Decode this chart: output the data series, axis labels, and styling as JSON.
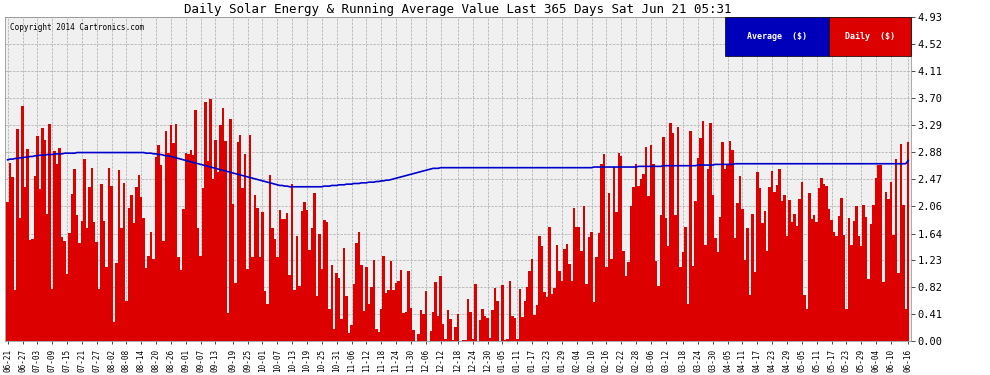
{
  "title": "Daily Solar Energy & Running Average Value Last 365 Days Sat Jun 21 05:31",
  "copyright": "Copyright 2014 Cartronics.com",
  "background_color": "#ffffff",
  "plot_bg_color": "#f0f0f0",
  "bar_color": "#dd0000",
  "line_color": "#0000cc",
  "ylim": [
    0.0,
    4.93
  ],
  "yticks": [
    0.0,
    0.41,
    0.82,
    1.23,
    1.64,
    2.06,
    2.47,
    2.88,
    3.29,
    3.7,
    4.11,
    4.52,
    4.93
  ],
  "legend_avg_bg": "#0000bb",
  "legend_daily_bg": "#dd0000",
  "x_labels": [
    "06-21",
    "06-27",
    "07-03",
    "07-09",
    "07-15",
    "07-21",
    "07-27",
    "08-02",
    "08-08",
    "08-14",
    "08-20",
    "08-26",
    "09-01",
    "09-07",
    "09-13",
    "09-19",
    "09-25",
    "10-01",
    "10-07",
    "10-13",
    "10-19",
    "10-25",
    "10-31",
    "11-06",
    "11-12",
    "11-18",
    "11-24",
    "11-30",
    "12-06",
    "12-12",
    "12-18",
    "12-24",
    "12-30",
    "01-05",
    "01-11",
    "01-17",
    "01-23",
    "01-29",
    "02-04",
    "02-10",
    "02-16",
    "02-22",
    "02-28",
    "03-06",
    "03-12",
    "03-18",
    "03-24",
    "03-30",
    "04-05",
    "04-11",
    "04-17",
    "04-23",
    "04-29",
    "05-05",
    "05-11",
    "05-17",
    "05-23",
    "05-29",
    "06-04",
    "06-10",
    "06-16"
  ],
  "n_bars": 365,
  "avg_line": [
    2.76,
    2.77,
    2.77,
    2.78,
    2.78,
    2.79,
    2.79,
    2.8,
    2.8,
    2.81,
    2.81,
    2.82,
    2.82,
    2.83,
    2.83,
    2.83,
    2.84,
    2.84,
    2.84,
    2.85,
    2.85,
    2.85,
    2.85,
    2.86,
    2.86,
    2.86,
    2.86,
    2.86,
    2.87,
    2.87,
    2.87,
    2.87,
    2.87,
    2.87,
    2.87,
    2.87,
    2.87,
    2.87,
    2.87,
    2.87,
    2.87,
    2.87,
    2.87,
    2.87,
    2.87,
    2.87,
    2.87,
    2.87,
    2.87,
    2.87,
    2.87,
    2.87,
    2.87,
    2.87,
    2.87,
    2.87,
    2.86,
    2.86,
    2.86,
    2.85,
    2.85,
    2.84,
    2.84,
    2.83,
    2.82,
    2.82,
    2.81,
    2.8,
    2.79,
    2.78,
    2.77,
    2.76,
    2.75,
    2.74,
    2.73,
    2.72,
    2.71,
    2.7,
    2.69,
    2.68,
    2.67,
    2.66,
    2.65,
    2.64,
    2.63,
    2.62,
    2.61,
    2.6,
    2.59,
    2.58,
    2.57,
    2.56,
    2.55,
    2.54,
    2.53,
    2.52,
    2.51,
    2.5,
    2.49,
    2.48,
    2.47,
    2.46,
    2.45,
    2.44,
    2.43,
    2.42,
    2.41,
    2.4,
    2.39,
    2.38,
    2.37,
    2.37,
    2.36,
    2.36,
    2.35,
    2.35,
    2.35,
    2.35,
    2.35,
    2.35,
    2.35,
    2.35,
    2.35,
    2.35,
    2.35,
    2.35,
    2.35,
    2.35,
    2.36,
    2.36,
    2.36,
    2.37,
    2.37,
    2.37,
    2.38,
    2.38,
    2.38,
    2.39,
    2.39,
    2.39,
    2.4,
    2.4,
    2.4,
    2.41,
    2.41,
    2.41,
    2.42,
    2.42,
    2.42,
    2.43,
    2.43,
    2.44,
    2.44,
    2.45,
    2.45,
    2.46,
    2.47,
    2.48,
    2.49,
    2.5,
    2.51,
    2.52,
    2.53,
    2.54,
    2.55,
    2.56,
    2.57,
    2.58,
    2.59,
    2.6,
    2.61,
    2.62,
    2.63,
    2.63,
    2.63,
    2.64,
    2.64,
    2.64,
    2.64,
    2.64,
    2.64,
    2.64,
    2.64,
    2.64,
    2.64,
    2.64,
    2.64,
    2.64,
    2.64,
    2.64,
    2.64,
    2.64,
    2.64,
    2.64,
    2.64,
    2.64,
    2.64,
    2.64,
    2.64,
    2.64,
    2.64,
    2.64,
    2.64,
    2.64,
    2.64,
    2.64,
    2.64,
    2.64,
    2.64,
    2.64,
    2.64,
    2.64,
    2.64,
    2.64,
    2.64,
    2.64,
    2.64,
    2.64,
    2.64,
    2.64,
    2.64,
    2.64,
    2.64,
    2.64,
    2.64,
    2.64,
    2.64,
    2.64,
    2.64,
    2.64,
    2.64,
    2.64,
    2.64,
    2.64,
    2.64,
    2.64,
    2.64,
    2.65,
    2.65,
    2.65,
    2.65,
    2.65,
    2.65,
    2.65,
    2.65,
    2.65,
    2.65,
    2.65,
    2.65,
    2.65,
    2.65,
    2.65,
    2.65,
    2.65,
    2.65,
    2.66,
    2.66,
    2.66,
    2.66,
    2.66,
    2.66,
    2.66,
    2.66,
    2.66,
    2.66,
    2.67,
    2.67,
    2.67,
    2.67,
    2.67,
    2.67,
    2.67,
    2.67,
    2.67,
    2.67,
    2.67,
    2.67,
    2.67,
    2.67,
    2.68,
    2.68,
    2.68,
    2.68,
    2.68,
    2.68,
    2.68,
    2.69,
    2.69,
    2.69,
    2.69,
    2.69,
    2.69,
    2.69,
    2.69,
    2.7,
    2.7,
    2.7,
    2.7,
    2.7,
    2.7,
    2.7,
    2.7,
    2.7,
    2.7,
    2.7,
    2.7,
    2.7,
    2.7,
    2.7,
    2.7,
    2.7,
    2.7,
    2.7,
    2.7,
    2.7,
    2.7,
    2.7,
    2.7,
    2.7,
    2.7,
    2.7,
    2.7,
    2.7,
    2.7,
    2.7,
    2.7,
    2.7,
    2.7,
    2.7,
    2.7,
    2.7,
    2.7,
    2.7,
    2.7,
    2.7,
    2.7,
    2.7,
    2.7,
    2.7,
    2.7,
    2.7,
    2.7,
    2.7,
    2.7,
    2.7,
    2.7,
    2.7,
    2.7,
    2.7,
    2.7,
    2.7,
    2.7,
    2.7,
    2.7,
    2.7,
    2.7,
    2.7,
    2.7,
    2.7,
    2.7,
    2.7,
    2.7,
    2.7,
    2.7,
    2.75
  ]
}
